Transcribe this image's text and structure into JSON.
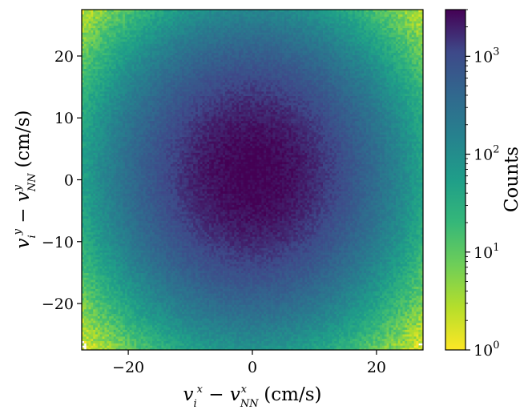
{
  "chart_data": {
    "type": "heatmap",
    "title": "",
    "xlabel": "v_i^x − v_NN^x (cm/s)",
    "ylabel": "v_i^y − v_NN^y (cm/s)",
    "xlim": [
      -27.5,
      27.5
    ],
    "ylim": [
      -27.5,
      27.5
    ],
    "xticks": [
      -20,
      0,
      20
    ],
    "yticks": [
      -20,
      -10,
      0,
      10,
      20
    ],
    "xtick_labels": [
      "−20",
      "0",
      "20"
    ],
    "ytick_labels": [
      "−20",
      "−10",
      "0",
      "10",
      "20"
    ],
    "bins": [
      150,
      150
    ],
    "colormap": "viridis (reversed)",
    "color_scale": "log",
    "peak_center": [
      0,
      1
    ],
    "peak_count": 3000,
    "spread_sigma": [
      9.5,
      10.5
    ],
    "colorbar": {
      "label": "Counts",
      "range": [
        1,
        3000
      ],
      "ticks": [
        1,
        10,
        100,
        1000
      ],
      "tick_labels": [
        "10",
        "10",
        "10",
        "10"
      ],
      "tick_exponents": [
        "0",
        "1",
        "2",
        "3"
      ]
    },
    "grid": false
  }
}
